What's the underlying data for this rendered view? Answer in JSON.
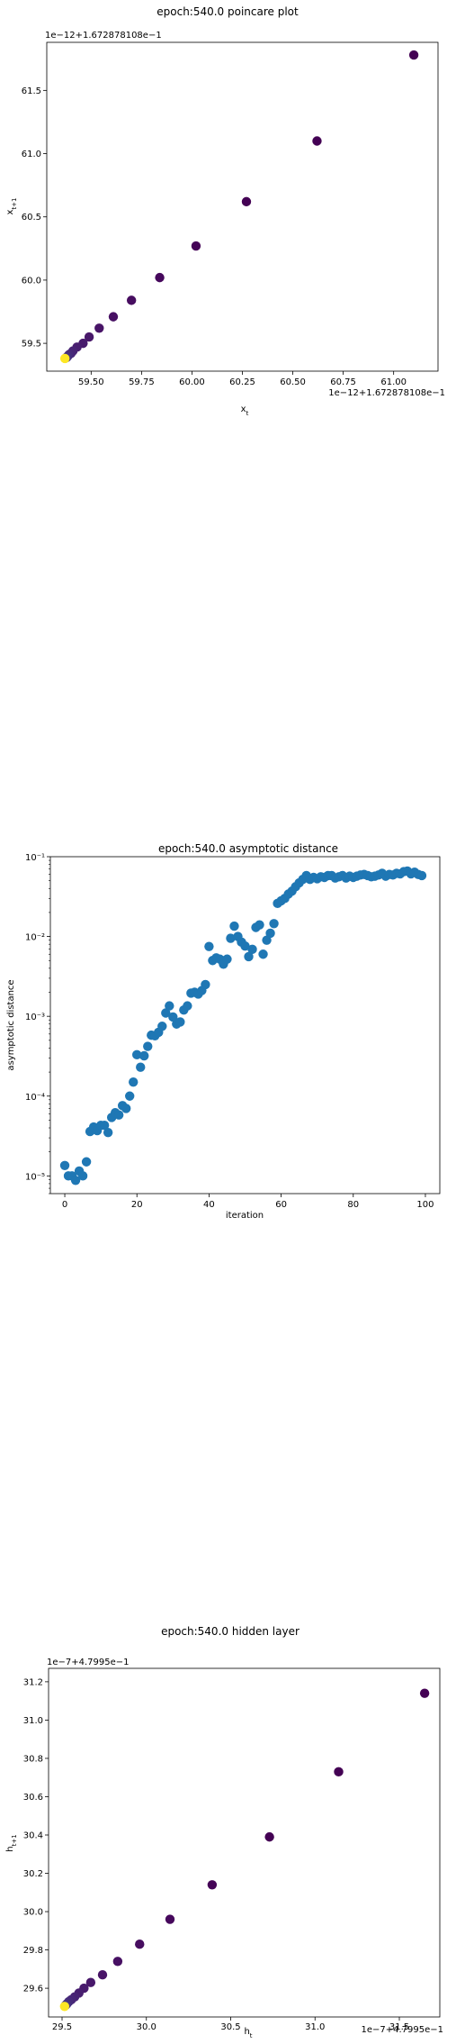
{
  "chart_data": [
    {
      "type": "scatter",
      "title": "epoch:540.0 poincare plot",
      "xlabel": "x_t",
      "ylabel": "x_{t+1}",
      "x_offset_text": "1e−12+1.672878108e−1",
      "y_offset_text": "1e−12+1.672878108e−1",
      "x_ticks": [
        "59.50",
        "59.75",
        "60.00",
        "60.25",
        "60.50",
        "60.75",
        "61.00"
      ],
      "y_ticks": [
        "59.5",
        "60.0",
        "60.5",
        "61.0",
        "61.5"
      ],
      "xlim": [
        59.28,
        61.22
      ],
      "ylim": [
        59.28,
        61.88
      ],
      "colormap": [
        "#440154",
        "#3b528b",
        "#fde725"
      ],
      "points": [
        {
          "x": 61.1,
          "y": 61.78,
          "c": "#440154"
        },
        {
          "x": 60.62,
          "y": 61.1,
          "c": "#440154"
        },
        {
          "x": 60.27,
          "y": 60.62,
          "c": "#440154"
        },
        {
          "x": 60.02,
          "y": 60.27,
          "c": "#450457"
        },
        {
          "x": 59.84,
          "y": 60.02,
          "c": "#46085c"
        },
        {
          "x": 59.7,
          "y": 59.84,
          "c": "#470d60"
        },
        {
          "x": 59.61,
          "y": 59.71,
          "c": "#471063"
        },
        {
          "x": 59.54,
          "y": 59.62,
          "c": "#481467"
        },
        {
          "x": 59.49,
          "y": 59.55,
          "c": "#48186a"
        },
        {
          "x": 59.46,
          "y": 59.5,
          "c": "#481b6d"
        },
        {
          "x": 59.43,
          "y": 59.47,
          "c": "#481f70"
        },
        {
          "x": 59.41,
          "y": 59.44,
          "c": "#482374"
        },
        {
          "x": 59.4,
          "y": 59.42,
          "c": "#482677"
        },
        {
          "x": 59.39,
          "y": 59.41,
          "c": "#472a7a"
        },
        {
          "x": 59.385,
          "y": 59.4,
          "c": "#472d7b"
        },
        {
          "x": 59.38,
          "y": 59.39,
          "c": "#46317e"
        },
        {
          "x": 59.375,
          "y": 59.385,
          "c": "#453581"
        },
        {
          "x": 59.37,
          "y": 59.38,
          "c": "#fde725"
        }
      ]
    },
    {
      "type": "scatter",
      "title": "epoch:540.0 asymptotic distance",
      "xlabel": "iteration",
      "ylabel": "asymptotic distance",
      "yscale": "log",
      "x_ticks": [
        "0",
        "20",
        "40",
        "60",
        "80",
        "100"
      ],
      "y_ticks": [
        "10⁻⁵",
        "10⁻⁴",
        "10⁻³",
        "10⁻²",
        "10⁻¹"
      ],
      "xlim": [
        -4,
        104
      ],
      "ylim": [
        6e-06,
        0.1
      ],
      "color": "#1f77b4",
      "x": [
        0,
        1,
        2,
        3,
        4,
        5,
        6,
        7,
        8,
        9,
        10,
        11,
        12,
        13,
        14,
        15,
        16,
        17,
        18,
        19,
        20,
        21,
        22,
        23,
        24,
        25,
        26,
        27,
        28,
        29,
        30,
        31,
        32,
        33,
        34,
        35,
        36,
        37,
        38,
        39,
        40,
        41,
        42,
        43,
        44,
        45,
        46,
        47,
        48,
        49,
        50,
        51,
        52,
        53,
        54,
        55,
        56,
        57,
        58,
        59,
        60,
        61,
        62,
        63,
        64,
        65,
        66,
        67,
        68,
        69,
        70,
        71,
        72,
        73,
        74,
        75,
        76,
        77,
        78,
        79,
        80,
        81,
        82,
        83,
        84,
        85,
        86,
        87,
        88,
        89,
        90,
        91,
        92,
        93,
        94,
        95,
        96,
        97,
        98,
        99
      ],
      "y": [
        1.35e-05,
        1e-05,
        1e-05,
        8.8e-06,
        1.15e-05,
        1e-05,
        1.5e-05,
        3.6e-05,
        4.1e-05,
        3.7e-05,
        4.3e-05,
        4.3e-05,
        3.5e-05,
        5.4e-05,
        6.2e-05,
        5.8e-05,
        7.6e-05,
        7e-05,
        0.0001,
        0.00015,
        0.00033,
        0.00023,
        0.00032,
        0.00042,
        0.00058,
        0.00057,
        0.00063,
        0.00075,
        0.0011,
        0.00135,
        0.00098,
        0.0008,
        0.00085,
        0.0012,
        0.00135,
        0.00195,
        0.002,
        0.0019,
        0.0021,
        0.0025,
        0.0075,
        0.005,
        0.0054,
        0.0052,
        0.0045,
        0.0052,
        0.0095,
        0.0135,
        0.01,
        0.0085,
        0.0076,
        0.0056,
        0.0069,
        0.013,
        0.014,
        0.006,
        0.009,
        0.011,
        0.0145,
        0.026,
        0.028,
        0.03,
        0.034,
        0.037,
        0.042,
        0.047,
        0.052,
        0.058,
        0.052,
        0.055,
        0.053,
        0.056,
        0.055,
        0.058,
        0.058,
        0.054,
        0.056,
        0.058,
        0.054,
        0.057,
        0.055,
        0.057,
        0.059,
        0.06,
        0.058,
        0.056,
        0.057,
        0.059,
        0.062,
        0.057,
        0.06,
        0.059,
        0.062,
        0.061,
        0.065,
        0.066,
        0.061,
        0.064,
        0.06,
        0.058
      ]
    },
    {
      "type": "scatter",
      "title": "epoch:540.0 hidden layer",
      "xlabel": "h_t",
      "ylabel": "h_{t+1}",
      "x_offset_text": "1e−7+4.7995e−1",
      "y_offset_text": "1e−7+4.7995e−1",
      "x_ticks": [
        "29.5",
        "30.0",
        "30.5",
        "31.0",
        "31.5"
      ],
      "y_ticks": [
        "29.6",
        "29.8",
        "30.0",
        "30.2",
        "30.4",
        "30.6",
        "30.8",
        "31.0",
        "31.2"
      ],
      "xlim": [
        29.42,
        31.74
      ],
      "ylim": [
        29.45,
        31.27
      ],
      "colormap": [
        "#440154",
        "#3b528b",
        "#fde725"
      ],
      "points": [
        {
          "x": 31.65,
          "y": 31.14,
          "c": "#440154"
        },
        {
          "x": 31.14,
          "y": 30.73,
          "c": "#440154"
        },
        {
          "x": 30.73,
          "y": 30.39,
          "c": "#440154"
        },
        {
          "x": 30.39,
          "y": 30.14,
          "c": "#450457"
        },
        {
          "x": 30.14,
          "y": 29.96,
          "c": "#46085c"
        },
        {
          "x": 29.96,
          "y": 29.83,
          "c": "#470d60"
        },
        {
          "x": 29.83,
          "y": 29.74,
          "c": "#471063"
        },
        {
          "x": 29.74,
          "y": 29.67,
          "c": "#481467"
        },
        {
          "x": 29.67,
          "y": 29.63,
          "c": "#48186a"
        },
        {
          "x": 29.63,
          "y": 29.6,
          "c": "#481b6d"
        },
        {
          "x": 29.6,
          "y": 29.575,
          "c": "#481f70"
        },
        {
          "x": 29.575,
          "y": 29.555,
          "c": "#482374"
        },
        {
          "x": 29.555,
          "y": 29.54,
          "c": "#482677"
        },
        {
          "x": 29.54,
          "y": 29.53,
          "c": "#472a7a"
        },
        {
          "x": 29.53,
          "y": 29.52,
          "c": "#472d7b"
        },
        {
          "x": 29.525,
          "y": 29.515,
          "c": "#46317e"
        },
        {
          "x": 29.52,
          "y": 29.51,
          "c": "#453581"
        },
        {
          "x": 29.515,
          "y": 29.505,
          "c": "#fde725"
        }
      ]
    }
  ]
}
